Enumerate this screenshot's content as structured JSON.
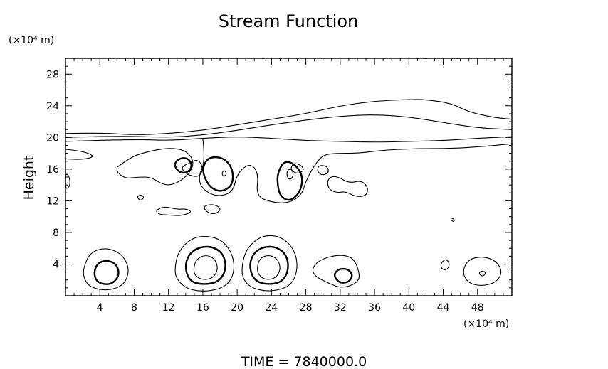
{
  "chart_data": {
    "type": "contour",
    "title": "Stream Function",
    "ylabel": "Height",
    "y_unit_label": "(×10⁴ m)",
    "x_unit_label": "(×10⁴ m)",
    "footer": "TIME  =  7840000.0",
    "xlim": [
      0,
      52
    ],
    "ylim": [
      0,
      30
    ],
    "x_ticks": [
      4,
      8,
      12,
      16,
      20,
      24,
      28,
      32,
      36,
      40,
      44,
      48
    ],
    "y_ticks": [
      4,
      8,
      12,
      16,
      20,
      24,
      28
    ],
    "grid": false,
    "line_color": "#000000",
    "contours": [
      {
        "weight": "thin",
        "closed": false,
        "points": [
          [
            0,
            20.5
          ],
          [
            4,
            20.6
          ],
          [
            8,
            20.3
          ],
          [
            12,
            20.5
          ],
          [
            16,
            20.9
          ],
          [
            20,
            21.6
          ],
          [
            24,
            22.3
          ],
          [
            28,
            23.0
          ],
          [
            32,
            24.0
          ],
          [
            36,
            24.6
          ],
          [
            40,
            24.8
          ],
          [
            42,
            24.8
          ],
          [
            45,
            24.3
          ],
          [
            47,
            23.2
          ],
          [
            50,
            22.5
          ],
          [
            52,
            22.3
          ]
        ]
      },
      {
        "weight": "thin",
        "closed": false,
        "points": [
          [
            0,
            20.0
          ],
          [
            6,
            20.2
          ],
          [
            12,
            20.0
          ],
          [
            16,
            20.3
          ],
          [
            20,
            20.9
          ],
          [
            24,
            21.6
          ],
          [
            28,
            22.2
          ],
          [
            32,
            22.7
          ],
          [
            36,
            22.9
          ],
          [
            40,
            22.6
          ],
          [
            44,
            21.9
          ],
          [
            48,
            21.2
          ],
          [
            52,
            21.0
          ]
        ]
      },
      {
        "weight": "thin",
        "closed": false,
        "points": [
          [
            0,
            19.5
          ],
          [
            8,
            19.8
          ],
          [
            12,
            19.6
          ],
          [
            16,
            19.9
          ],
          [
            20,
            20.1
          ],
          [
            24,
            19.9
          ],
          [
            28,
            19.6
          ],
          [
            32,
            19.5
          ],
          [
            36,
            19.4
          ],
          [
            40,
            19.5
          ],
          [
            44,
            19.6
          ],
          [
            48,
            19.9
          ],
          [
            52,
            20.1
          ]
        ]
      },
      {
        "weight": "thin",
        "closed": false,
        "points": [
          [
            0,
            18.5
          ],
          [
            2,
            18.3
          ],
          [
            3.5,
            17.6
          ],
          [
            2,
            17.2
          ],
          [
            0,
            17.3
          ]
        ]
      },
      {
        "weight": "thin",
        "closed": false,
        "points": [
          [
            16,
            19.8
          ],
          [
            16.3,
            17.0
          ],
          [
            15.5,
            15.2
          ],
          [
            15.8,
            13.6
          ],
          [
            17.5,
            12.5
          ],
          [
            19.5,
            13.0
          ],
          [
            20,
            15.5
          ],
          [
            21.5,
            16.8
          ],
          [
            22.5,
            15.5
          ],
          [
            22.2,
            12.6
          ],
          [
            24,
            11.8
          ],
          [
            26,
            11.7
          ],
          [
            27.5,
            12.7
          ],
          [
            28,
            14.5
          ],
          [
            29,
            16.5
          ],
          [
            30,
            17.8
          ],
          [
            31.5,
            18.0
          ],
          [
            34,
            18.0
          ],
          [
            37,
            18.4
          ],
          [
            41,
            18.6
          ],
          [
            45,
            18.6
          ],
          [
            49,
            18.9
          ],
          [
            52,
            19.2
          ]
        ]
      },
      {
        "weight": "thin",
        "closed": false,
        "points": [
          [
            6,
            16.2
          ],
          [
            7.5,
            17.5
          ],
          [
            9.5,
            18.2
          ],
          [
            12,
            18.7
          ],
          [
            14,
            18.4
          ],
          [
            15,
            17.0
          ],
          [
            14.5,
            15.5
          ],
          [
            13,
            14.2
          ],
          [
            11.5,
            13.9
          ],
          [
            10,
            15.0
          ],
          [
            8.5,
            15.0
          ],
          [
            7,
            14.8
          ],
          [
            6,
            15.6
          ],
          [
            6,
            16.2
          ]
        ]
      },
      {
        "weight": "thin",
        "closed": true,
        "points": [
          [
            13.5,
            16.3
          ],
          [
            14.5,
            16.8
          ],
          [
            15.2,
            17.2
          ],
          [
            15.8,
            16.8
          ],
          [
            16.0,
            15.8
          ],
          [
            15.5,
            15.0
          ],
          [
            14.5,
            15.2
          ],
          [
            13.8,
            15.6
          ]
        ]
      },
      {
        "weight": "thin",
        "closed": true,
        "points": [
          [
            26.5,
            16.8
          ],
          [
            27.5,
            16.5
          ],
          [
            27.8,
            15.8
          ],
          [
            27.0,
            15.4
          ],
          [
            26.2,
            15.9
          ]
        ]
      },
      {
        "weight": "thin",
        "closed": true,
        "points": [
          [
            29.5,
            16.5
          ],
          [
            30.5,
            16.4
          ],
          [
            30.7,
            15.5
          ],
          [
            29.8,
            15.2
          ],
          [
            29.3,
            15.8
          ]
        ]
      },
      {
        "weight": "thin",
        "closed": true,
        "points": [
          [
            30.5,
            14.8
          ],
          [
            31.5,
            15.2
          ],
          [
            33.0,
            14.2
          ],
          [
            34.5,
            14.6
          ],
          [
            35.3,
            13.6
          ],
          [
            35.0,
            12.6
          ],
          [
            33.8,
            12.5
          ],
          [
            32.6,
            13.2
          ],
          [
            31.6,
            13.0
          ],
          [
            30.6,
            13.5
          ]
        ]
      },
      {
        "weight": "thin",
        "closed": true,
        "points": [
          [
            10.5,
            10.8
          ],
          [
            11.5,
            11.3
          ],
          [
            13,
            10.9
          ],
          [
            14,
            11.0
          ],
          [
            14.8,
            10.6
          ],
          [
            13.5,
            10.1
          ],
          [
            12,
            10.2
          ],
          [
            10.8,
            10.3
          ]
        ]
      },
      {
        "weight": "thin",
        "closed": true,
        "points": [
          [
            16.0,
            11.3
          ],
          [
            17.2,
            11.6
          ],
          [
            18.2,
            11.0
          ],
          [
            17.5,
            10.3
          ],
          [
            16.5,
            10.5
          ]
        ]
      },
      {
        "weight": "thin",
        "closed": true,
        "points": [
          [
            8.3,
            12.5
          ],
          [
            8.8,
            12.8
          ],
          [
            9.2,
            12.4
          ],
          [
            8.7,
            12.0
          ]
        ]
      },
      {
        "weight": "thin",
        "closed": true,
        "points": [
          [
            44.8,
            9.9
          ],
          [
            45.4,
            9.6
          ],
          [
            45.1,
            9.3
          ]
        ]
      },
      {
        "weight": "thin",
        "closed": true,
        "points": [
          [
            0,
            13.3
          ],
          [
            0.6,
            14.0
          ],
          [
            0.4,
            15.2
          ],
          [
            0,
            15.5
          ]
        ]
      },
      {
        "weight": "thick",
        "closed": true,
        "points": [
          [
            12.6,
            16.6
          ],
          [
            13.3,
            17.4
          ],
          [
            14.3,
            17.4
          ],
          [
            14.8,
            16.4
          ],
          [
            14.2,
            15.5
          ],
          [
            13.2,
            15.6
          ]
        ]
      },
      {
        "weight": "thick",
        "closed": true,
        "points": [
          [
            16.0,
            16.4
          ],
          [
            16.8,
            17.6
          ],
          [
            18.5,
            17.4
          ],
          [
            19.5,
            16.0
          ],
          [
            19.5,
            14.0
          ],
          [
            18.2,
            13.1
          ],
          [
            16.9,
            13.6
          ],
          [
            16.1,
            15.1
          ]
        ]
      },
      {
        "weight": "thin",
        "closed": true,
        "points": [
          [
            18.2,
            15.5
          ],
          [
            18.5,
            15.9
          ],
          [
            18.8,
            15.4
          ],
          [
            18.4,
            15.0
          ]
        ]
      },
      {
        "weight": "thick",
        "closed": true,
        "points": [
          [
            24.7,
            15.5
          ],
          [
            25.5,
            17.1
          ],
          [
            26.8,
            16.6
          ],
          [
            27.7,
            15.0
          ],
          [
            27.3,
            13.0
          ],
          [
            26.1,
            11.9
          ],
          [
            25.0,
            12.6
          ],
          [
            24.7,
            14.0
          ]
        ]
      },
      {
        "weight": "thin",
        "closed": true,
        "points": [
          [
            25.8,
            15.8
          ],
          [
            26.3,
            16.1
          ],
          [
            26.6,
            15.3
          ],
          [
            26.2,
            14.6
          ],
          [
            25.8,
            15.0
          ]
        ]
      },
      {
        "weight": "thin",
        "closed": true,
        "points": [
          [
            2.1,
            3.6
          ],
          [
            2.9,
            5.5
          ],
          [
            4.7,
            6.1
          ],
          [
            6.6,
            5.3
          ],
          [
            7.5,
            3.3
          ],
          [
            6.8,
            1.3
          ],
          [
            4.8,
            0.6
          ],
          [
            2.8,
            1.1
          ],
          [
            2.1,
            2.3
          ]
        ]
      },
      {
        "weight": "thick",
        "closed": true,
        "points": [
          [
            3.3,
            2.9
          ],
          [
            3.7,
            4.1
          ],
          [
            4.7,
            4.5
          ],
          [
            5.9,
            4.1
          ],
          [
            6.3,
            2.7
          ],
          [
            5.6,
            1.6
          ],
          [
            4.6,
            1.4
          ],
          [
            3.6,
            1.8
          ]
        ]
      },
      {
        "weight": "thin",
        "closed": true,
        "points": [
          [
            12.7,
            3.2
          ],
          [
            13.1,
            5.6
          ],
          [
            14.7,
            7.3
          ],
          [
            16.5,
            7.6
          ],
          [
            18.3,
            7.0
          ],
          [
            19.5,
            5.2
          ],
          [
            19.7,
            3.0
          ],
          [
            18.8,
            1.2
          ],
          [
            16.6,
            0.5
          ],
          [
            14.2,
            0.8
          ],
          [
            13.0,
            2.0
          ]
        ]
      },
      {
        "weight": "thick",
        "closed": true,
        "points": [
          [
            13.9,
            3.5
          ],
          [
            14.3,
            5.2
          ],
          [
            15.6,
            6.2
          ],
          [
            17.3,
            6.2
          ],
          [
            18.5,
            5.1
          ],
          [
            18.7,
            3.2
          ],
          [
            17.8,
            1.7
          ],
          [
            16.0,
            1.4
          ],
          [
            14.5,
            1.8
          ]
        ]
      },
      {
        "weight": "thin",
        "closed": true,
        "points": [
          [
            14.9,
            3.4
          ],
          [
            15.2,
            4.6
          ],
          [
            16.3,
            5.2
          ],
          [
            17.4,
            4.7
          ],
          [
            17.8,
            3.4
          ],
          [
            17.2,
            2.2
          ],
          [
            16.0,
            2.0
          ],
          [
            15.1,
            2.5
          ]
        ]
      },
      {
        "weight": "thin",
        "closed": true,
        "points": [
          [
            20.5,
            3.5
          ],
          [
            21.0,
            5.8
          ],
          [
            22.5,
            7.4
          ],
          [
            24.2,
            7.7
          ],
          [
            25.8,
            7.0
          ],
          [
            26.9,
            5.2
          ],
          [
            27.0,
            3.0
          ],
          [
            26.2,
            1.2
          ],
          [
            24.0,
            0.5
          ],
          [
            21.8,
            0.9
          ],
          [
            20.7,
            2.0
          ]
        ]
      },
      {
        "weight": "thick",
        "closed": true,
        "points": [
          [
            21.4,
            3.6
          ],
          [
            21.8,
            5.3
          ],
          [
            23.0,
            6.2
          ],
          [
            24.6,
            6.2
          ],
          [
            25.8,
            5.1
          ],
          [
            26.0,
            3.2
          ],
          [
            25.2,
            1.7
          ],
          [
            23.5,
            1.4
          ],
          [
            22.0,
            1.9
          ]
        ]
      },
      {
        "weight": "thin",
        "closed": true,
        "points": [
          [
            22.3,
            3.5
          ],
          [
            22.6,
            4.7
          ],
          [
            23.6,
            5.2
          ],
          [
            24.7,
            4.7
          ],
          [
            25.1,
            3.4
          ],
          [
            24.5,
            2.2
          ],
          [
            23.3,
            2.0
          ],
          [
            22.5,
            2.6
          ]
        ]
      },
      {
        "weight": "thin",
        "closed": true,
        "points": [
          [
            28.7,
            3.5
          ],
          [
            29.7,
            4.6
          ],
          [
            31.8,
            5.2
          ],
          [
            33.4,
            4.9
          ],
          [
            34.1,
            3.5
          ],
          [
            34.3,
            1.8
          ],
          [
            32.3,
            0.9
          ],
          [
            30.6,
            1.6
          ],
          [
            29.0,
            2.5
          ]
        ]
      },
      {
        "weight": "thick",
        "closed": true,
        "points": [
          [
            31.2,
            2.6
          ],
          [
            31.8,
            3.4
          ],
          [
            32.9,
            3.4
          ],
          [
            33.5,
            2.6
          ],
          [
            33.0,
            1.7
          ],
          [
            31.9,
            1.6
          ]
        ]
      },
      {
        "weight": "thin",
        "closed": true,
        "points": [
          [
            43.7,
            4.1
          ],
          [
            44.3,
            4.7
          ],
          [
            44.8,
            4.0
          ],
          [
            44.4,
            3.2
          ],
          [
            43.8,
            3.4
          ]
        ]
      },
      {
        "weight": "thin",
        "closed": true,
        "points": [
          [
            46.2,
            3.0
          ],
          [
            46.9,
            4.6
          ],
          [
            48.6,
            5.0
          ],
          [
            50.2,
            4.4
          ],
          [
            50.9,
            3.0
          ],
          [
            50.2,
            1.7
          ],
          [
            48.5,
            1.2
          ],
          [
            46.9,
            1.6
          ]
        ]
      },
      {
        "weight": "thin",
        "closed": true,
        "points": [
          [
            48.1,
            2.8
          ],
          [
            48.5,
            3.2
          ],
          [
            49.0,
            2.9
          ],
          [
            48.6,
            2.4
          ]
        ]
      }
    ]
  }
}
